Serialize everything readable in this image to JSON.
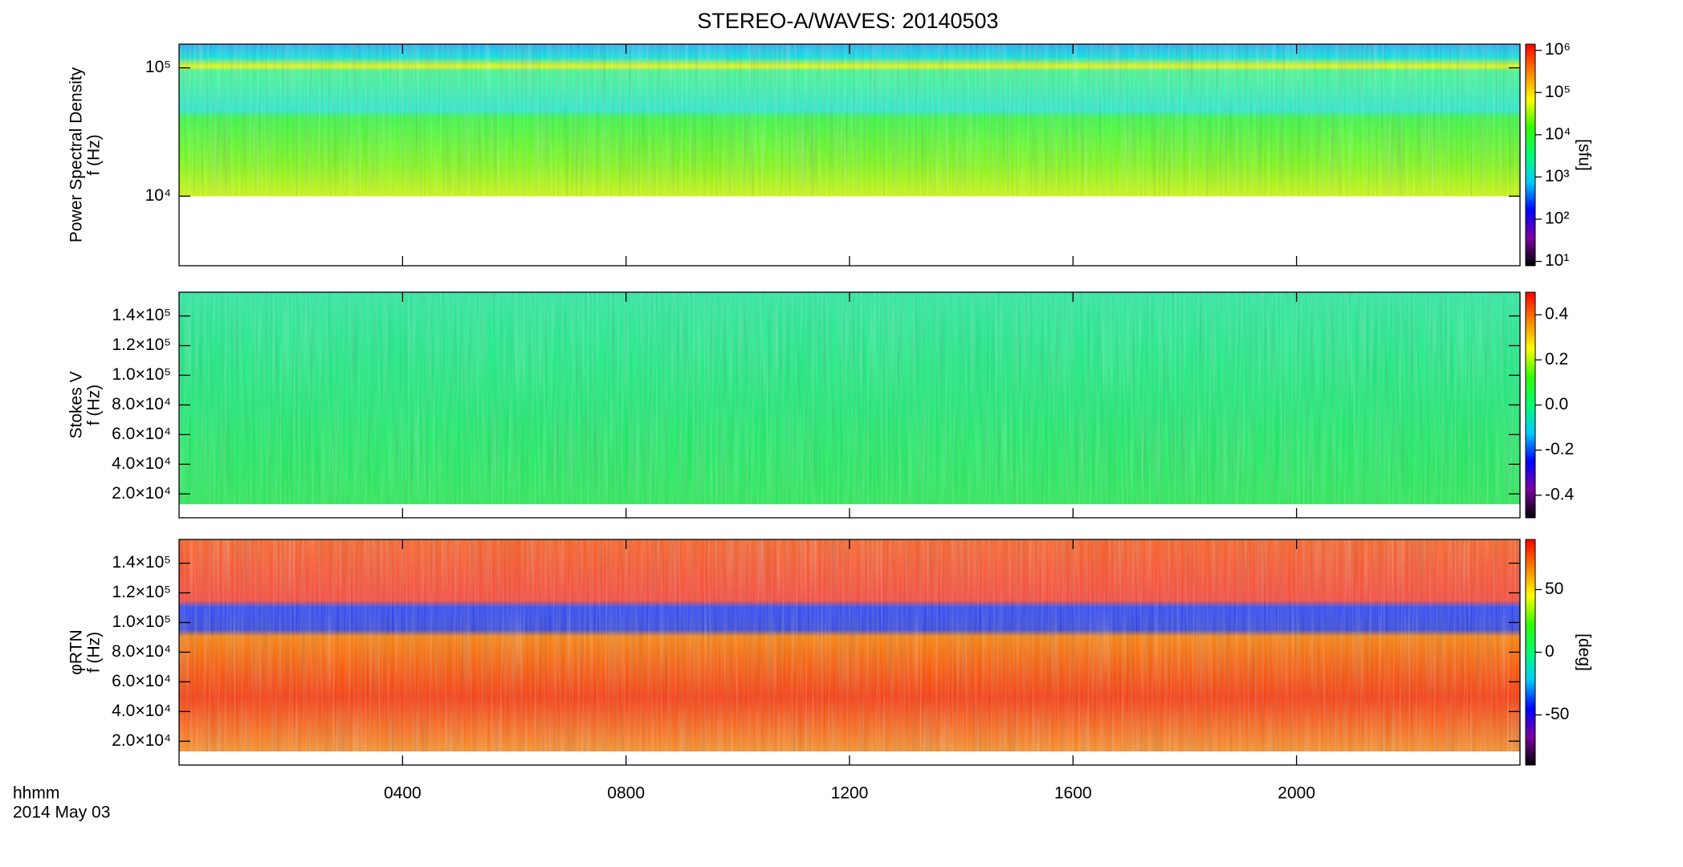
{
  "chart_data": [
    {
      "type": "heatmap",
      "title": "STEREO-A/WAVES: 20140503",
      "ylabel": [
        "Power Spectral Density",
        "f (Hz)"
      ],
      "yscale": "log",
      "ylim": [
        2870,
        153000
      ],
      "yticks": [
        {
          "value": 10000,
          "label": "10⁴"
        },
        {
          "value": 100000,
          "label": "10⁵"
        }
      ],
      "colorbar": {
        "label": "[sfu]",
        "scale": "log",
        "lim": [
          7.9,
          1400000
        ],
        "ticks": [
          {
            "value": 10,
            "label": "10¹"
          },
          {
            "value": 100,
            "label": "10²"
          },
          {
            "value": 1000,
            "label": "10³"
          },
          {
            "value": 10000,
            "label": "10⁴"
          },
          {
            "value": 100000,
            "label": "10⁵"
          },
          {
            "value": 1000000,
            "label": "10⁶"
          }
        ]
      }
    },
    {
      "type": "heatmap",
      "ylabel": [
        "Stokes V",
        "f (Hz)"
      ],
      "yscale": "linear",
      "ylim": [
        3900,
        156000
      ],
      "yticks": [
        {
          "value": 20000,
          "label": "2.0×10⁴"
        },
        {
          "value": 40000,
          "label": "4.0×10⁴"
        },
        {
          "value": 60000,
          "label": "6.0×10⁴"
        },
        {
          "value": 80000,
          "label": "8.0×10⁴"
        },
        {
          "value": 100000,
          "label": "1.0×10⁵"
        },
        {
          "value": 120000,
          "label": "1.2×10⁵"
        },
        {
          "value": 140000,
          "label": "1.4×10⁵"
        }
      ],
      "colorbar": {
        "scale": "linear",
        "lim": [
          -0.5,
          0.5
        ],
        "ticks": [
          -0.4,
          -0.2,
          {
            "value": 0,
            "label": "0.0"
          },
          0.2,
          0.4
        ]
      }
    },
    {
      "type": "heatmap",
      "ylabel": [
        "φRTN",
        "f (Hz)"
      ],
      "yscale": "linear",
      "ylim": [
        3900,
        156000
      ],
      "yticks": [
        {
          "value": 20000,
          "label": "2.0×10⁴"
        },
        {
          "value": 40000,
          "label": "4.0×10⁴"
        },
        {
          "value": 60000,
          "label": "6.0×10⁴"
        },
        {
          "value": 80000,
          "label": "8.0×10⁴"
        },
        {
          "value": 100000,
          "label": "1.0×10⁵"
        },
        {
          "value": 120000,
          "label": "1.2×10⁵"
        },
        {
          "value": 140000,
          "label": "1.4×10⁵"
        }
      ],
      "colorbar": {
        "label": "[deg]",
        "scale": "linear",
        "lim": [
          -90,
          90
        ],
        "ticks": [
          -50,
          0,
          50
        ]
      },
      "xlabel": [
        "hhmm",
        "2014 May 03"
      ],
      "xlim": [
        0,
        24
      ],
      "xticks": [
        {
          "value": 4,
          "label": "0400"
        },
        {
          "value": 8,
          "label": "0800"
        },
        {
          "value": 12,
          "label": "1200"
        },
        {
          "value": 16,
          "label": "1600"
        },
        {
          "value": 20,
          "label": "2000"
        }
      ],
      "colormap": [
        "#000000",
        "#7a00a0",
        "#0000ff",
        "#00c8ff",
        "#00ff70",
        "#30ff00",
        "#ffff00",
        "#ff8000",
        "#ff0000"
      ]
    }
  ]
}
